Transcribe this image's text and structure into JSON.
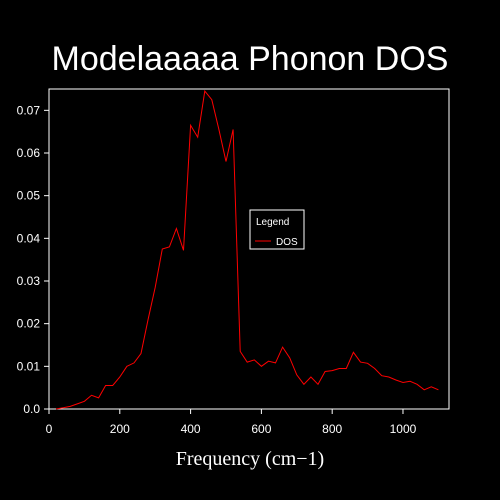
{
  "chart_data": {
    "type": "line",
    "title": "Modelaaaaa Phonon DOS",
    "xlabel": "Frequency (cm−1)",
    "ylabel": "",
    "xlim": [
      0,
      1130
    ],
    "ylim": [
      0,
      0.075
    ],
    "xticks": [
      0,
      200,
      400,
      600,
      800,
      1000
    ],
    "yticks": [
      0.0,
      0.01,
      0.02,
      0.03,
      0.04,
      0.05,
      0.06,
      0.07
    ],
    "ytick_labels": [
      "0.0",
      "0.01",
      "0.02",
      "0.03",
      "0.04",
      "0.05",
      "0.06",
      "0.07"
    ],
    "grid": false,
    "legend": {
      "title": "Legend",
      "placement": "center-right"
    },
    "series": [
      {
        "name": "DOS",
        "color": "#ff0000",
        "x": [
          20,
          40,
          60,
          80,
          100,
          120,
          140,
          160,
          180,
          200,
          220,
          240,
          260,
          280,
          300,
          320,
          340,
          360,
          380,
          400,
          420,
          440,
          460,
          480,
          500,
          520,
          540,
          560,
          580,
          600,
          620,
          640,
          660,
          680,
          700,
          720,
          740,
          760,
          780,
          800,
          820,
          840,
          860,
          880,
          900,
          920,
          940,
          960,
          980,
          1000,
          1020,
          1040,
          1060,
          1080,
          1100
        ],
        "y": [
          0.0,
          0.0003,
          0.0006,
          0.0012,
          0.0018,
          0.0032,
          0.0026,
          0.0055,
          0.0055,
          0.0075,
          0.01,
          0.0108,
          0.013,
          0.021,
          0.0285,
          0.0375,
          0.038,
          0.0423,
          0.0372,
          0.0665,
          0.0637,
          0.0745,
          0.0725,
          0.0655,
          0.058,
          0.0655,
          0.0135,
          0.011,
          0.0115,
          0.01,
          0.0112,
          0.0108,
          0.0145,
          0.012,
          0.008,
          0.0058,
          0.0075,
          0.0058,
          0.0088,
          0.009,
          0.0095,
          0.0095,
          0.0133,
          0.011,
          0.0107,
          0.0095,
          0.0078,
          0.0075,
          0.0068,
          0.0062,
          0.0065,
          0.0058,
          0.0045,
          0.0052,
          0.0045
        ]
      }
    ]
  }
}
